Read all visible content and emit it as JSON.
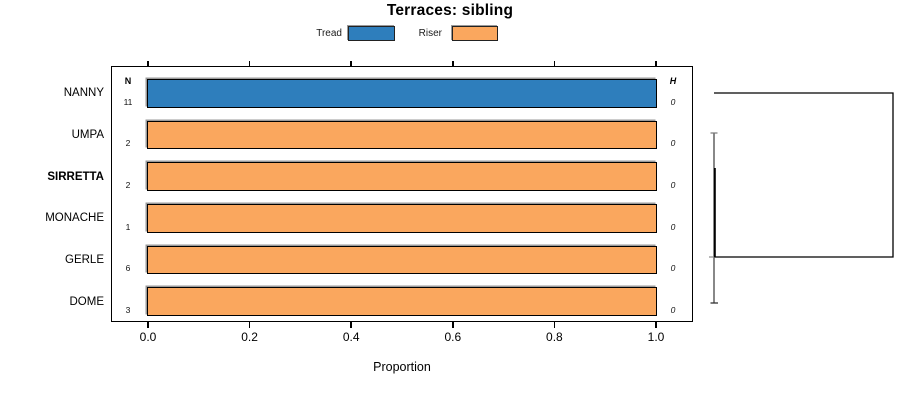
{
  "title": "Terraces: sibling",
  "colors": {
    "Tread": "#2e7ebc",
    "Riser": "#faa75e"
  },
  "legend": {
    "items": [
      {
        "label": "Tread"
      },
      {
        "label": "Riser"
      }
    ]
  },
  "columns": {
    "n_header": "N",
    "h_header": "H"
  },
  "rows": [
    {
      "label": "NANNY",
      "series": "Tread",
      "proportion": 1.0,
      "n": "11",
      "h": "0",
      "emphasis": false
    },
    {
      "label": "UMPA",
      "series": "Riser",
      "proportion": 1.0,
      "n": "2",
      "h": "0",
      "emphasis": false
    },
    {
      "label": "SIRRETTA",
      "series": "Riser",
      "proportion": 1.0,
      "n": "2",
      "h": "0",
      "emphasis": true
    },
    {
      "label": "MONACHE",
      "series": "Riser",
      "proportion": 1.0,
      "n": "1",
      "h": "0",
      "emphasis": false
    },
    {
      "label": "GERLE",
      "series": "Riser",
      "proportion": 1.0,
      "n": "6",
      "h": "0",
      "emphasis": false
    },
    {
      "label": "DOME",
      "series": "Riser",
      "proportion": 1.0,
      "n": "3",
      "h": "0",
      "emphasis": false
    }
  ],
  "x_axis": {
    "label": "Proportion",
    "ticks": [
      "0.0",
      "0.2",
      "0.4",
      "0.6",
      "0.8",
      "1.0"
    ]
  },
  "chart_data": {
    "type": "bar",
    "orientation": "horizontal",
    "stacked": true,
    "title": "Terraces: sibling",
    "categories": [
      "NANNY",
      "UMPA",
      "SIRRETTA",
      "MONACHE",
      "GERLE",
      "DOME"
    ],
    "series": [
      {
        "name": "Tread",
        "color": "#2e7ebc",
        "values": [
          1.0,
          0.0,
          0.0,
          0.0,
          0.0,
          0.0
        ]
      },
      {
        "name": "Riser",
        "color": "#faa75e",
        "values": [
          0.0,
          1.0,
          1.0,
          1.0,
          1.0,
          1.0
        ]
      }
    ],
    "annotations": {
      "N": [
        11,
        2,
        2,
        1,
        6,
        3
      ],
      "H": [
        0,
        0,
        0,
        0,
        0,
        0
      ]
    },
    "xlabel": "Proportion",
    "xlim": [
      0,
      1.05
    ],
    "xticks": [
      0.0,
      0.2,
      0.4,
      0.6,
      0.8,
      1.0
    ],
    "grid": false,
    "legend_position": "top-center",
    "emphasized_category": "SIRRETTA",
    "right_panel": "dendrogram: all merges at height 0 except final merge of NANNY with cluster {UMPA,SIRRETTA,MONACHE,GERLE,DOME} at maximum height"
  }
}
